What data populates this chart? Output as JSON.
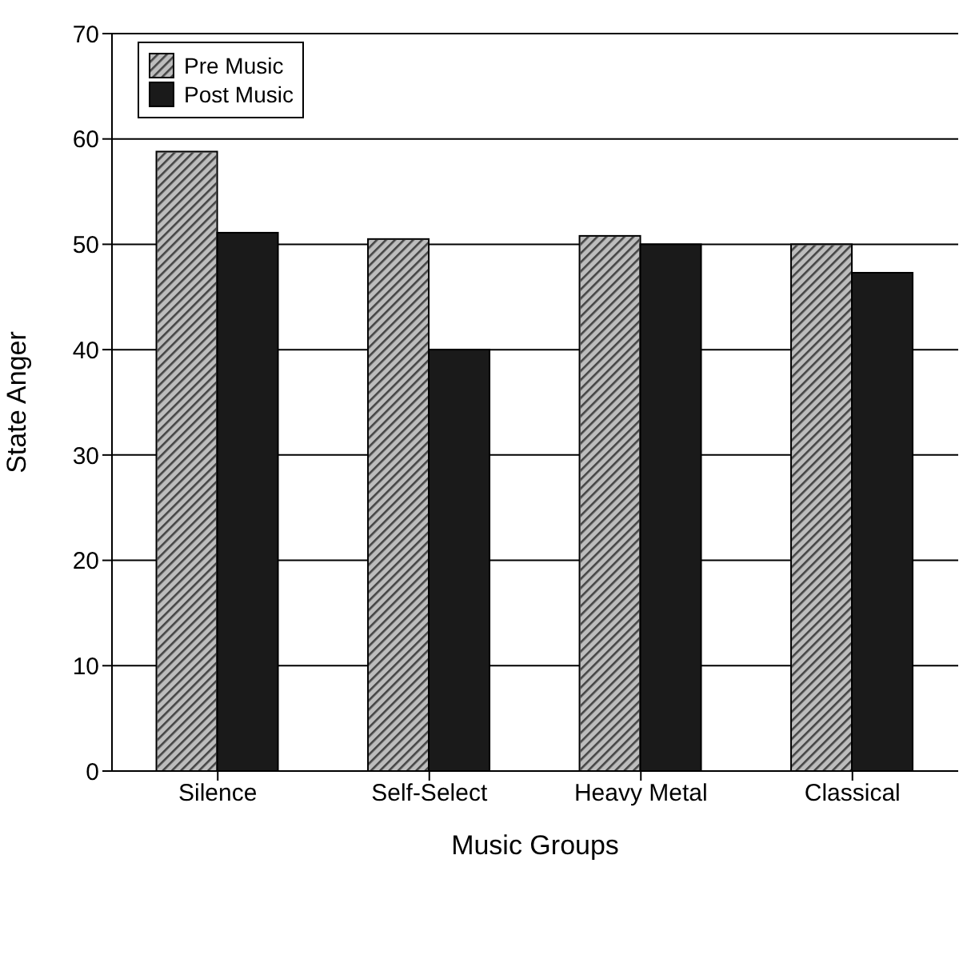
{
  "chart_data": {
    "type": "bar",
    "xlabel": "Music Groups",
    "ylabel": "State Anger",
    "categories": [
      "Silence",
      "Self-Select",
      "Heavy Metal",
      "Classical"
    ],
    "series": [
      {
        "name": "Pre Music",
        "color": "#bdbdbd",
        "values": [
          58.8,
          50.5,
          50.8,
          50
        ]
      },
      {
        "name": "Post Music",
        "color": "#1a1a1a",
        "values": [
          51.1,
          40,
          50,
          47.3
        ]
      }
    ],
    "ylim": [
      0,
      70
    ],
    "yticks": [
      0,
      10,
      20,
      30,
      40,
      50,
      60,
      70
    ],
    "grid": "y",
    "legend": "top left"
  }
}
